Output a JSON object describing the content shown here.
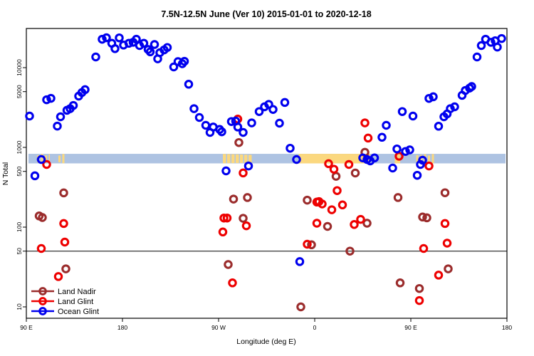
{
  "title": "7.5N-12.5N June (Ver 10)  2015-01-01 to 2020-12-18",
  "chart_data": {
    "type": "scatter",
    "title": "7.5N-12.5N June (Ver 10)  2015-01-01 to 2020-12-18",
    "xlabel": "Longitude (deg E)",
    "ylabel": "N Total",
    "x_axis": {
      "note": "longitude axis wraps eastward from 90E to 180, ticks every 90 deg",
      "range_deg": [
        90,
        540
      ],
      "ticks": [
        {
          "deg": 90,
          "label": "90 E"
        },
        {
          "deg": 180,
          "label": "180"
        },
        {
          "deg": 270,
          "label": "90 W"
        },
        {
          "deg": 360,
          "label": "0"
        },
        {
          "deg": 450,
          "label": "90 E"
        },
        {
          "deg": 540,
          "label": "180"
        }
      ]
    },
    "y_axis": {
      "scale": "log",
      "ticks": [
        10,
        50,
        100,
        500,
        1000,
        5000,
        10000
      ],
      "range": [
        7,
        31000
      ]
    },
    "reference_line_N": 50,
    "map_strip": {
      "description": "land/ocean strip for 7.5N-12.5N drawn across the plot",
      "N_top": 830,
      "N_bottom": 630,
      "ocean_color": "#aec3e2",
      "land_color": "#fbd87f",
      "land_segments_deg": [
        {
          "from": 100,
          "to": 112,
          "style": "speckled"
        },
        {
          "from": 120,
          "to": 126,
          "style": "speckled"
        },
        {
          "from": 274,
          "to": 301,
          "style": "dense"
        },
        {
          "from": 345,
          "to": 412,
          "style": "solid"
        },
        {
          "from": 435,
          "to": 440,
          "style": "solid"
        },
        {
          "from": 455,
          "to": 473,
          "style": "speckled"
        }
      ]
    },
    "legend": {
      "position": "bottom-left"
    },
    "series": [
      {
        "name": "Land Nadir",
        "color": "#9b2c2c",
        "points": [
          [
            102,
            138
          ],
          [
            105,
            132
          ],
          [
            125,
            269
          ],
          [
            127,
            30
          ],
          [
            279,
            34
          ],
          [
            284,
            225
          ],
          [
            289,
            1150
          ],
          [
            293,
            129
          ],
          [
            297,
            235
          ],
          [
            347,
            10
          ],
          [
            353,
            218
          ],
          [
            357,
            60
          ],
          [
            372,
            102
          ],
          [
            380,
            434
          ],
          [
            393,
            50
          ],
          [
            398,
            477
          ],
          [
            407,
            867
          ],
          [
            409,
            112
          ],
          [
            438,
            235
          ],
          [
            440,
            20
          ],
          [
            458,
            17
          ],
          [
            461,
            134
          ],
          [
            465,
            131
          ],
          [
            482,
            270
          ],
          [
            485,
            30
          ]
        ]
      },
      {
        "name": "Land Glint",
        "color": "#ee0000",
        "points": [
          [
            104,
            54
          ],
          [
            109,
            610
          ],
          [
            120,
            24
          ],
          [
            125,
            111
          ],
          [
            126,
            65
          ],
          [
            274,
            87
          ],
          [
            275,
            130
          ],
          [
            278,
            130
          ],
          [
            283,
            20
          ],
          [
            288,
            2260
          ],
          [
            293,
            478
          ],
          [
            296,
            104
          ],
          [
            353,
            61
          ],
          [
            362,
            206
          ],
          [
            362,
            112
          ],
          [
            364,
            209
          ],
          [
            367,
            195
          ],
          [
            373,
            625
          ],
          [
            376,
            165
          ],
          [
            378,
            532
          ],
          [
            381,
            287
          ],
          [
            386,
            190
          ],
          [
            392,
            610
          ],
          [
            397,
            108
          ],
          [
            403,
            125
          ],
          [
            407,
            2030
          ],
          [
            410,
            1310
          ],
          [
            439,
            775
          ],
          [
            458,
            12
          ],
          [
            462,
            54
          ],
          [
            467,
            585
          ],
          [
            476,
            25
          ],
          [
            482,
            111
          ],
          [
            484,
            63
          ]
        ]
      },
      {
        "name": "Ocean Glint",
        "color": "#0000ee",
        "points": [
          [
            93,
            2470
          ],
          [
            98,
            440
          ],
          [
            104,
            705
          ],
          [
            109,
            3960
          ],
          [
            113,
            4120
          ],
          [
            119,
            1850
          ],
          [
            122,
            2420
          ],
          [
            128,
            2920
          ],
          [
            131,
            3060
          ],
          [
            134,
            3360
          ],
          [
            139,
            4390
          ],
          [
            142,
            4870
          ],
          [
            145,
            5300
          ],
          [
            155,
            13600
          ],
          [
            161,
            22700
          ],
          [
            165,
            23700
          ],
          [
            170,
            20200
          ],
          [
            173,
            17300
          ],
          [
            177,
            23600
          ],
          [
            181,
            19200
          ],
          [
            186,
            20200
          ],
          [
            190,
            20800
          ],
          [
            193,
            22700
          ],
          [
            196,
            18900
          ],
          [
            200,
            20200
          ],
          [
            204,
            16900
          ],
          [
            206,
            15800
          ],
          [
            210,
            19500
          ],
          [
            213,
            12900
          ],
          [
            215,
            15400
          ],
          [
            219,
            16700
          ],
          [
            222,
            17900
          ],
          [
            228,
            10200
          ],
          [
            232,
            11900
          ],
          [
            236,
            11200
          ],
          [
            238,
            12000
          ],
          [
            242,
            6190
          ],
          [
            247,
            3060
          ],
          [
            252,
            2370
          ],
          [
            258,
            1890
          ],
          [
            262,
            1540
          ],
          [
            265,
            1800
          ],
          [
            271,
            1680
          ],
          [
            273,
            1570
          ],
          [
            277,
            507
          ],
          [
            282,
            2110
          ],
          [
            286,
            2140
          ],
          [
            288,
            1800
          ],
          [
            293,
            1540
          ],
          [
            298,
            585
          ],
          [
            301,
            2030
          ],
          [
            308,
            2810
          ],
          [
            313,
            3230
          ],
          [
            317,
            3460
          ],
          [
            321,
            2990
          ],
          [
            327,
            2010
          ],
          [
            332,
            3660
          ],
          [
            337,
            975
          ],
          [
            343,
            705
          ],
          [
            346,
            37
          ],
          [
            405,
            738
          ],
          [
            409,
            705
          ],
          [
            412,
            676
          ],
          [
            416,
            738
          ],
          [
            423,
            1340
          ],
          [
            427,
            1890
          ],
          [
            433,
            551
          ],
          [
            437,
            955
          ],
          [
            442,
            2810
          ],
          [
            445,
            890
          ],
          [
            449,
            930
          ],
          [
            452,
            2470
          ],
          [
            456,
            447
          ],
          [
            459,
            610
          ],
          [
            461,
            690
          ],
          [
            467,
            4110
          ],
          [
            471,
            4310
          ],
          [
            476,
            1840
          ],
          [
            481,
            2420
          ],
          [
            484,
            2630
          ],
          [
            487,
            3060
          ],
          [
            491,
            3230
          ],
          [
            498,
            4490
          ],
          [
            501,
            5170
          ],
          [
            505,
            5540
          ],
          [
            507,
            5800
          ],
          [
            512,
            13600
          ],
          [
            516,
            18900
          ],
          [
            520,
            22700
          ],
          [
            525,
            20800
          ],
          [
            529,
            21700
          ],
          [
            531,
            18100
          ],
          [
            535,
            23200
          ]
        ]
      }
    ]
  }
}
